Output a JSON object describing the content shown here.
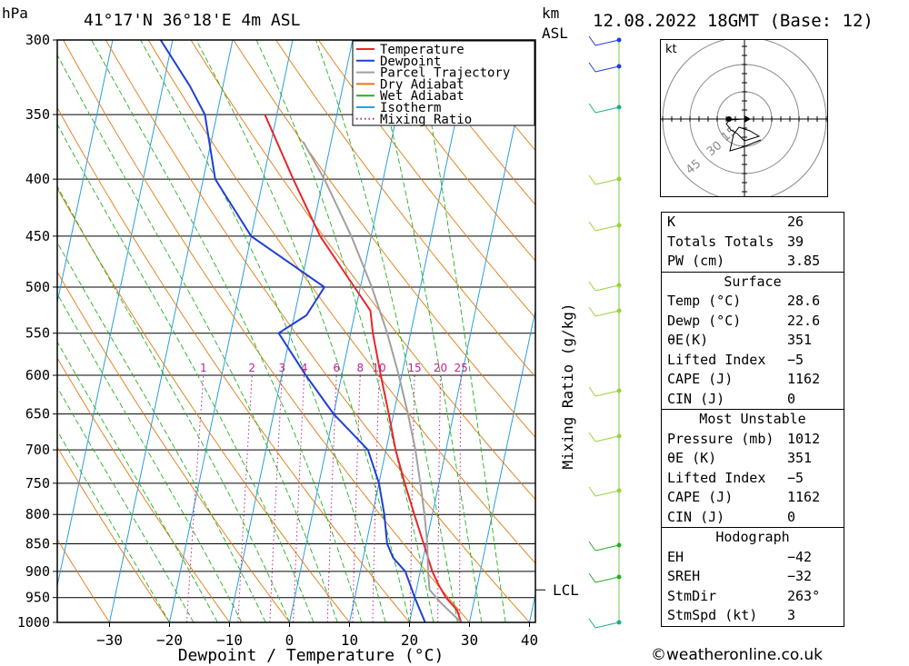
{
  "header": {
    "pressure_unit": "hPa",
    "location": "41°17'N  36°18'E  4m  ASL",
    "km_label": "km",
    "asl_label": "ASL",
    "datetime": "12.08.2022  18GMT  (Base: 12)"
  },
  "chart_data": {
    "type": "line",
    "subtype": "skew-T log-P",
    "title": "41°17'N  36°18'E  4m  ASL",
    "xlabel": "Dewpoint / Temperature (°C)",
    "ylabel": "hPa",
    "mixing_ratio_label": "Mixing Ratio (g/kg)",
    "xlim": [
      -40,
      40
    ],
    "ylim": [
      1000,
      300
    ],
    "x_ticks": [
      -30,
      -20,
      -10,
      0,
      10,
      20,
      30,
      40
    ],
    "pressure_levels": [
      300,
      350,
      400,
      450,
      500,
      550,
      600,
      650,
      700,
      750,
      800,
      850,
      900,
      950,
      1000
    ],
    "mixing_ratio_ticks": [
      "1",
      "2",
      "3",
      "4",
      "6",
      "8",
      "10",
      "15",
      "20",
      "25"
    ],
    "mixing_ratio_values": [
      1,
      2,
      3,
      4,
      6,
      8,
      10,
      15,
      20,
      25
    ],
    "legend": [
      "Temperature",
      "Dewpoint",
      "Parcel Trajectory",
      "Dry Adiabat",
      "Wet Adiabat",
      "Isotherm",
      "Mixing Ratio"
    ],
    "legend_position": "top-right",
    "colors": {
      "Temperature": "#e8262b",
      "Dewpoint": "#1f3fd6",
      "Parcel Trajectory": "#a0a0a0",
      "Dry Adiabat": "#e07a10",
      "Wet Adiabat": "#22b022",
      "Isotherm": "#2a9ee0",
      "Mixing Ratio": "#c0208f"
    },
    "series": [
      {
        "name": "Temperature",
        "points": [
          [
            1000,
            28.6
          ],
          [
            975,
            27.5
          ],
          [
            950,
            25.2
          ],
          [
            925,
            23.5
          ],
          [
            900,
            22.0
          ],
          [
            850,
            19.6
          ],
          [
            800,
            17.0
          ],
          [
            750,
            14.3
          ],
          [
            700,
            11.6
          ],
          [
            650,
            9.2
          ],
          [
            600,
            6.5
          ],
          [
            550,
            3.7
          ],
          [
            525,
            2.5
          ],
          [
            500,
            -1.0
          ],
          [
            450,
            -8.5
          ],
          [
            400,
            -15.0
          ],
          [
            350,
            -22.0
          ]
        ]
      },
      {
        "name": "Dewpoint",
        "points": [
          [
            1000,
            22.6
          ],
          [
            950,
            20.0
          ],
          [
            900,
            17.5
          ],
          [
            875,
            15.0
          ],
          [
            850,
            13.5
          ],
          [
            800,
            12.0
          ],
          [
            750,
            10.0
          ],
          [
            700,
            7.0
          ],
          [
            650,
            0.0
          ],
          [
            600,
            -6.0
          ],
          [
            550,
            -12.0
          ],
          [
            530,
            -8.0
          ],
          [
            500,
            -6.0
          ],
          [
            450,
            -20.0
          ],
          [
            400,
            -28.0
          ],
          [
            350,
            -32.0
          ],
          [
            330,
            -35.5
          ],
          [
            300,
            -42.0
          ]
        ]
      },
      {
        "name": "Parcel Trajectory",
        "points": [
          [
            1000,
            28.6
          ],
          [
            960,
            24.5
          ],
          [
            935,
            22.2
          ],
          [
            900,
            21.3
          ],
          [
            850,
            20.2
          ],
          [
            800,
            18.7
          ],
          [
            750,
            16.9
          ],
          [
            700,
            14.9
          ],
          [
            650,
            12.4
          ],
          [
            600,
            9.5
          ],
          [
            550,
            6.1
          ],
          [
            500,
            1.9
          ],
          [
            450,
            -3.3
          ],
          [
            400,
            -9.8
          ],
          [
            370,
            -14.7
          ]
        ]
      }
    ],
    "lcl_pressure": 935,
    "lcl_label": "LCL",
    "km_ticks": [],
    "wind_barbs": []
  },
  "hodograph": {
    "unit": "kt",
    "ring_labels": [
      "15",
      "30",
      "45"
    ]
  },
  "indices": {
    "main": [
      {
        "label": "K",
        "value": "26"
      },
      {
        "label": "Totals Totals",
        "value": "39"
      },
      {
        "label": "PW (cm)",
        "value": "3.85"
      }
    ],
    "surface": {
      "title": "Surface",
      "rows": [
        {
          "label": "Temp (°C)",
          "value": "28.6"
        },
        {
          "label": "Dewp (°C)",
          "value": "22.6"
        },
        {
          "label": "θE(K)",
          "value": "351"
        },
        {
          "label": "Lifted Index",
          "value": "-5"
        },
        {
          "label": "CAPE (J)",
          "value": "1162"
        },
        {
          "label": "CIN (J)",
          "value": "0"
        }
      ]
    },
    "most_unstable": {
      "title": "Most Unstable",
      "rows": [
        {
          "label": "Pressure (mb)",
          "value": "1012"
        },
        {
          "label": "θE (K)",
          "value": "351"
        },
        {
          "label": "Lifted Index",
          "value": "-5"
        },
        {
          "label": "CAPE (J)",
          "value": "1162"
        },
        {
          "label": "CIN (J)",
          "value": "0"
        }
      ]
    },
    "hodograph": {
      "title": "Hodograph",
      "rows": [
        {
          "label": "EH",
          "value": "-42"
        },
        {
          "label": "SREH",
          "value": "-32"
        },
        {
          "label": "StmDir",
          "value": "263°"
        },
        {
          "label": "StmSpd (kt)",
          "value": "3"
        }
      ]
    }
  },
  "footer": {
    "copyright": "©weatheronline.co.uk"
  }
}
